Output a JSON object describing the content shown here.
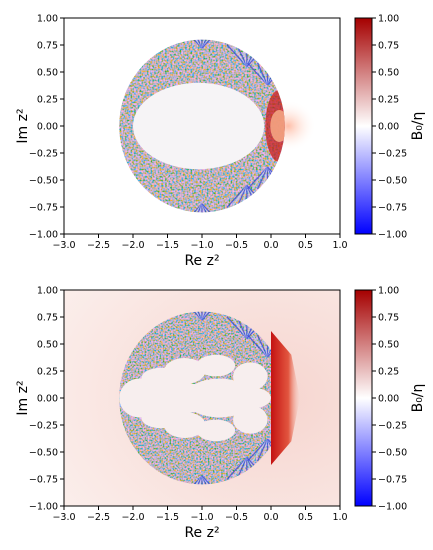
{
  "chart_data": [
    {
      "type": "heatmap",
      "xlabel": "Re z²",
      "ylabel": "Im z²",
      "xlim": [
        -3.0,
        1.0
      ],
      "ylim": [
        -1.0,
        1.0
      ],
      "xticks": [
        "−3.0",
        "−2.5",
        "−2.0",
        "−1.5",
        "−1.0",
        "−0.5",
        "0.0",
        "0.5",
        "1.0"
      ],
      "yticks": [
        "1.00",
        "0.75",
        "0.50",
        "0.25",
        "0.00",
        "−0.25",
        "−0.50",
        "−0.75",
        "−1.00"
      ],
      "colorbar": {
        "label": "B₀/η",
        "range": [
          -1.0,
          1.0
        ],
        "ticks": [
          "1.00",
          "0.75",
          "0.50",
          "0.25",
          "0.00",
          "−0.25",
          "−0.50",
          "−0.75",
          "−1.00"
        ],
        "colormap": "seismic",
        "colors": [
          "#0000ff",
          "#ffffff",
          "#aa0000"
        ]
      },
      "region": {
        "shape": "ellipse",
        "center": [
          -1.0,
          0.0
        ],
        "semi_axes": [
          1.2,
          0.8
        ]
      }
    },
    {
      "type": "heatmap",
      "xlabel": "Re z²",
      "ylabel": "Im z²",
      "xlim": [
        -3.0,
        1.0
      ],
      "ylim": [
        -1.0,
        1.0
      ],
      "xticks": [
        "−3.0",
        "−2.5",
        "−2.0",
        "−1.5",
        "−1.0",
        "−0.5",
        "0.0",
        "0.5",
        "1.0"
      ],
      "yticks": [
        "1.00",
        "0.75",
        "0.50",
        "0.25",
        "0.00",
        "−0.25",
        "−0.50",
        "−0.75",
        "−1.00"
      ],
      "colorbar": {
        "label": "B₀/η",
        "range": [
          -1.0,
          1.0
        ],
        "ticks": [
          "1.00",
          "0.75",
          "0.50",
          "0.25",
          "0.00",
          "−0.25",
          "−0.50",
          "−0.75",
          "−1.00"
        ],
        "colormap": "seismic",
        "colors": [
          "#0000ff",
          "#ffffff",
          "#aa0000"
        ]
      },
      "region": {
        "shape": "ellipse",
        "center": [
          -1.0,
          0.0
        ],
        "semi_axes": [
          1.2,
          0.8
        ]
      }
    }
  ]
}
